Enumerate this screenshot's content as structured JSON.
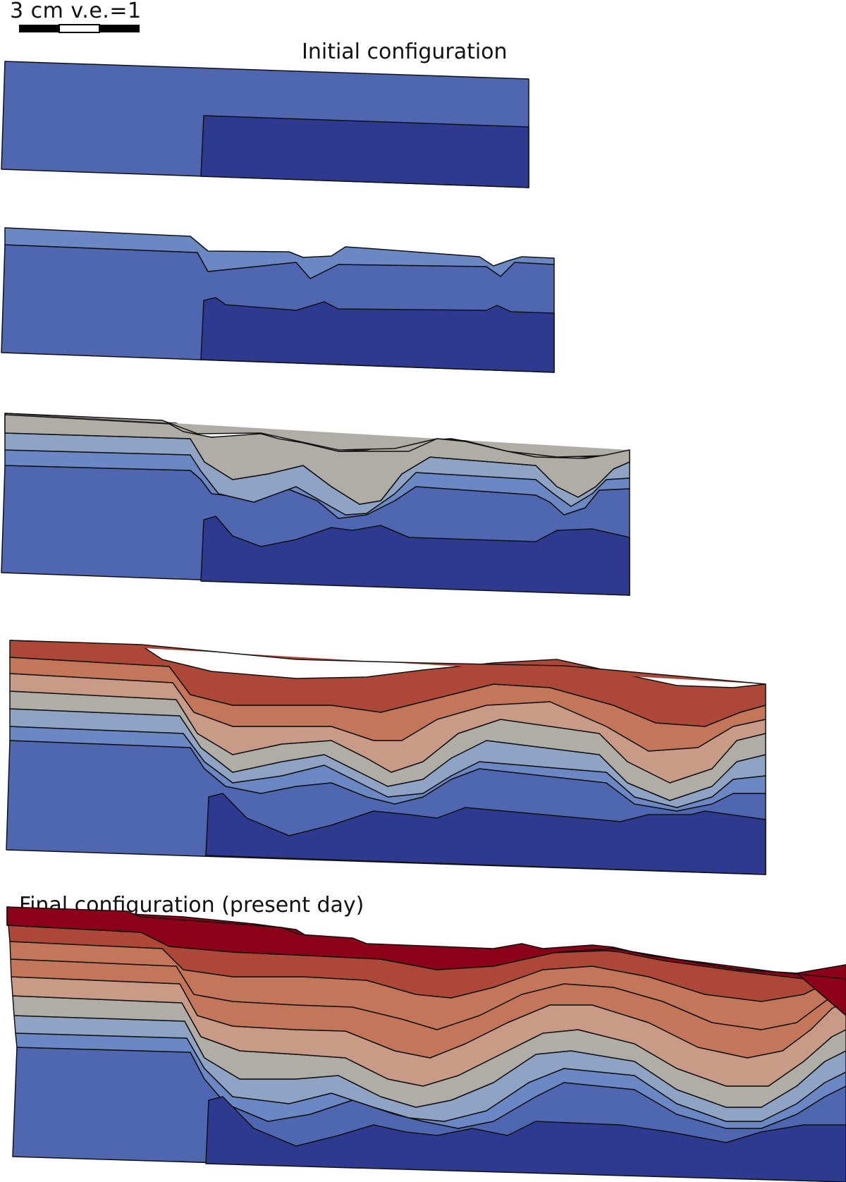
{
  "scale_bar": {
    "label": "3 cm v.e.=1",
    "segment_colors": [
      "#000000",
      "#ffffff",
      "#000000"
    ]
  },
  "labels": {
    "initial": "Initial configuration",
    "final": "Final configuration (present day)"
  },
  "palette": {
    "basement_deep": "#2e3a8f",
    "basement_light": "#4f66b0",
    "layer_blue_mid": "#6b87c4",
    "layer_blue_gray": "#8fa3c4",
    "layer_gray": "#b0aca6",
    "layer_tan": "#c99a85",
    "layer_orange": "#c4765a",
    "layer_rust": "#ad4838",
    "layer_crimson": "#8c0018",
    "line": "#111111"
  },
  "stages": [
    {
      "id": "stage-1",
      "description_label": "Initial configuration",
      "layer_count": 2
    },
    {
      "id": "stage-2",
      "layer_count": 3
    },
    {
      "id": "stage-3",
      "layer_count": 5
    },
    {
      "id": "stage-4",
      "layer_count": 9
    },
    {
      "id": "stage-5",
      "description_label": "Final configuration (present day)",
      "layer_count": 11
    }
  ]
}
